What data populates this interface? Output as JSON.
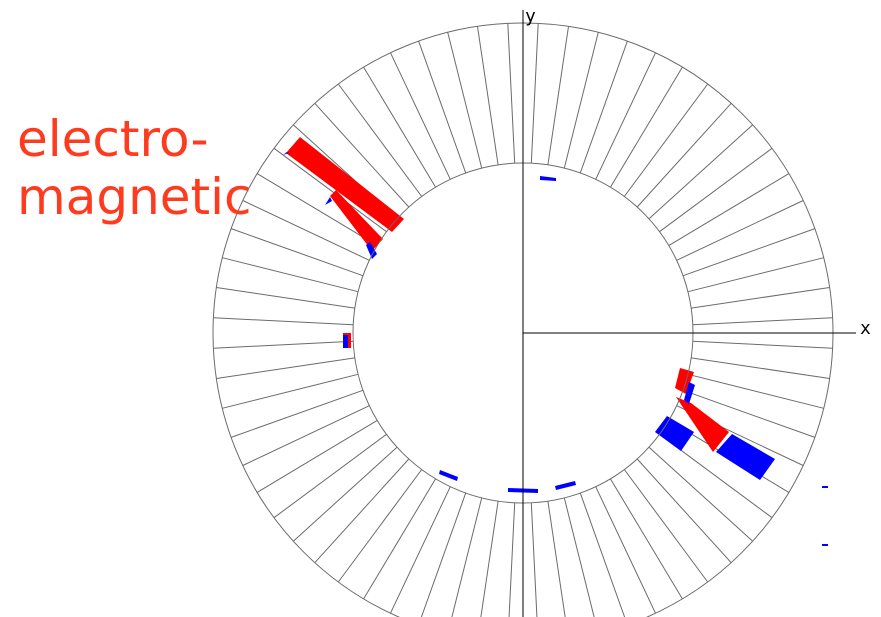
{
  "annotation": {
    "lines": [
      "electro-",
      "magnetic"
    ],
    "color": "#ff3b1f"
  },
  "axes": {
    "x_label": "x",
    "y_label": "y"
  },
  "calorimeter": {
    "sector_count": 64,
    "colors": {
      "em": "#ff0000",
      "hadronic": "#0000ff",
      "outline": "#6b6b6b"
    }
  }
}
